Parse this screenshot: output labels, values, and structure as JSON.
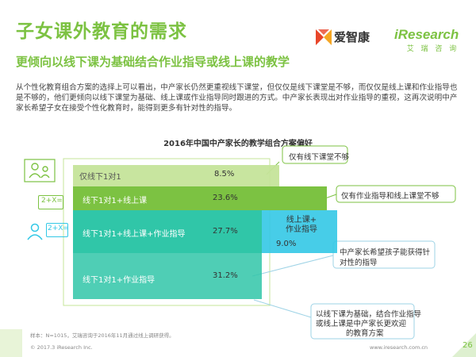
{
  "header": {
    "title": "子女课外教育的需求",
    "subtitle": "更倾向以线下课为基础结合作业指导或线上课的教学",
    "logo_aizhikang": "爱智康",
    "logo_iresearch": "iResearch",
    "logo_iresearch_cn": "艾 瑞 咨 询"
  },
  "paragraph": "从个性化教育组合方案的选择上可以看出，中产家长仍然更重视线下课堂，但仅仅是线下课堂是不够，而仅仅是线上课和作业指导也是不够的，他们更倾向以线下课堂为基础、线上课或作业指导同时跟进的方式。中产家长表现出对作业指导的重视，这再次说明中产家长希望子女在接受个性化教育时，能得到更多有针对性的指导。",
  "chart_data": {
    "type": "bar",
    "title": "2016年中国中产家长的教学组合方案偏好",
    "categories": [
      "仅线下1对1",
      "线下1对1+线上课",
      "线下1对1+线上课+作业指导",
      "线下1对1+作业指导",
      "线上课+作业指导"
    ],
    "values": [
      8.5,
      23.6,
      27.7,
      31.2,
      9.0
    ],
    "value_labels": [
      "8.5%",
      "23.6%",
      "27.7%",
      "31.2%",
      "9.0%"
    ],
    "unit": "%",
    "colors": {
      "light_green": "#c5e49a",
      "green": "#7cc242",
      "teal": "#30c6a8",
      "cyan": "#33c8e6",
      "callout_border": "#9ed3e6"
    }
  },
  "callouts": {
    "only_offline": "仅有线下课堂不够",
    "only_homework_online": "仅有作业指导和线上课堂不够",
    "targeted_line1": "中产家长希望孩子能获得针",
    "targeted_line2": "对性的指导",
    "preferred_line1": "以线下课为基础，结合作业指导",
    "preferred_line2": "或线上课是中产家长更欢迎",
    "preferred_line3": "的教育方案"
  },
  "icons": {
    "parent_child": "parent-child-icon",
    "math_card": "math-card-icon",
    "teacher": "teacher-icon"
  },
  "icon_text": {
    "math_card": "2+X=",
    "teacher_card": "2+X="
  },
  "footer": {
    "note": "样本：N=1015，艾瑞咨询于2016年11月通过线上调研获得。",
    "copyright": "© 2017.3  iResearch Inc.",
    "site": "www.iresearch.com.cn",
    "page": "26"
  }
}
